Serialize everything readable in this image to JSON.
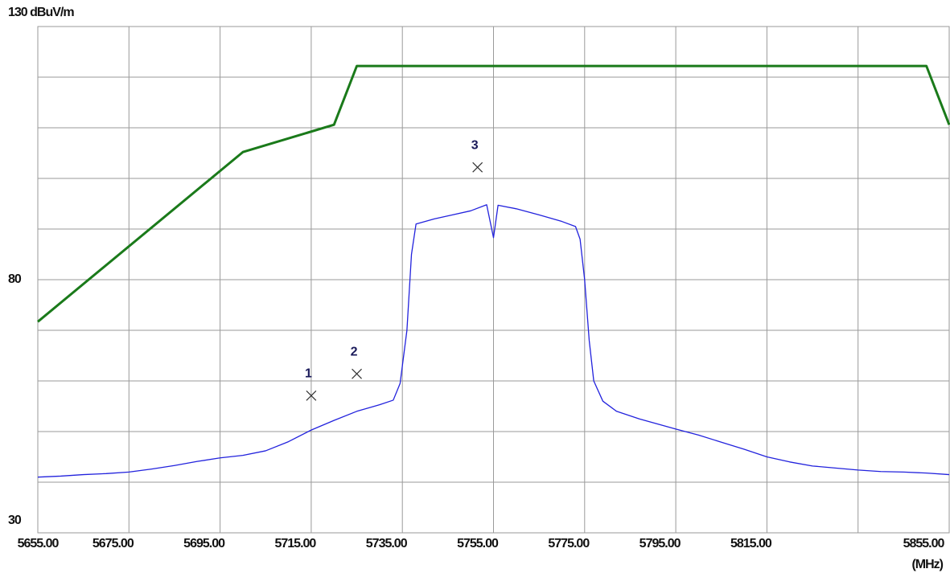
{
  "chart_data": {
    "type": "line",
    "x_label": "(MHz)",
    "xlim": [
      5655,
      5855
    ],
    "ylim": [
      30,
      130
    ],
    "grid": true,
    "xticks": [
      {
        "value": 5655,
        "label": "5655.00"
      },
      {
        "value": 5675,
        "label": "5675.00"
      },
      {
        "value": 5695,
        "label": "5695.00"
      },
      {
        "value": 5715,
        "label": "5715.00"
      },
      {
        "value": 5735,
        "label": "5735.00"
      },
      {
        "value": 5755,
        "label": "5755.00"
      },
      {
        "value": 5775,
        "label": "5775.00"
      },
      {
        "value": 5795,
        "label": "5795.00"
      },
      {
        "value": 5815,
        "label": "5815.00"
      },
      {
        "value": 5835,
        "label": null
      },
      {
        "value": 5855,
        "label": "5855.00"
      }
    ],
    "yticks": [
      {
        "value": 130,
        "label": "130 dBuV/m"
      },
      {
        "value": 120,
        "label": null
      },
      {
        "value": 110,
        "label": null
      },
      {
        "value": 100,
        "label": null
      },
      {
        "value": 90,
        "label": null
      },
      80,
      {
        "value": 70,
        "label": null
      },
      {
        "value": 60,
        "label": null
      },
      {
        "value": 50,
        "label": null
      },
      {
        "value": 40,
        "label": null
      },
      30
    ],
    "series": [
      {
        "color": "#1a7a1a",
        "x": [
          5655,
          5700,
          5720,
          5725,
          5850,
          5855
        ],
        "values": [
          71.7,
          105.2,
          110.6,
          122.2,
          122.2,
          110.6
        ]
      },
      {
        "color": "#2222dd",
        "x": [
          5655,
          5660,
          5665,
          5670,
          5675,
          5680,
          5685,
          5690,
          5695,
          5700,
          5705,
          5710,
          5715,
          5720,
          5725,
          5730,
          5733,
          5734.5,
          5736,
          5737,
          5738,
          5742,
          5746,
          5750,
          5753.5,
          5755,
          5756,
          5760,
          5765,
          5770,
          5773,
          5774,
          5775,
          5776,
          5777,
          5779,
          5782,
          5787,
          5795,
          5800,
          5805,
          5810,
          5815,
          5820,
          5825,
          5830,
          5835,
          5840,
          5845,
          5850,
          5855
        ],
        "values": [
          41.0,
          41.2,
          41.5,
          41.7,
          42.0,
          42.6,
          43.3,
          44.1,
          44.8,
          45.3,
          46.2,
          48.0,
          50.3,
          52.2,
          54.0,
          55.3,
          56.2,
          59.5,
          70.0,
          85.0,
          91.0,
          92.0,
          92.8,
          93.6,
          94.8,
          88.3,
          94.7,
          94.0,
          92.8,
          91.5,
          90.5,
          88.0,
          80.0,
          68.0,
          60.0,
          56.0,
          54.0,
          52.5,
          50.5,
          49.3,
          47.9,
          46.5,
          45.0,
          44.0,
          43.2,
          42.8,
          42.4,
          42.1,
          42.0,
          41.8,
          41.5
        ]
      }
    ],
    "markers": [
      {
        "label": "1",
        "x": 5715,
        "value": 57.1
      },
      {
        "label": "2",
        "x": 5725,
        "value": 61.4
      },
      {
        "label": "3",
        "x": 5751.5,
        "value": 102.2
      }
    ]
  }
}
